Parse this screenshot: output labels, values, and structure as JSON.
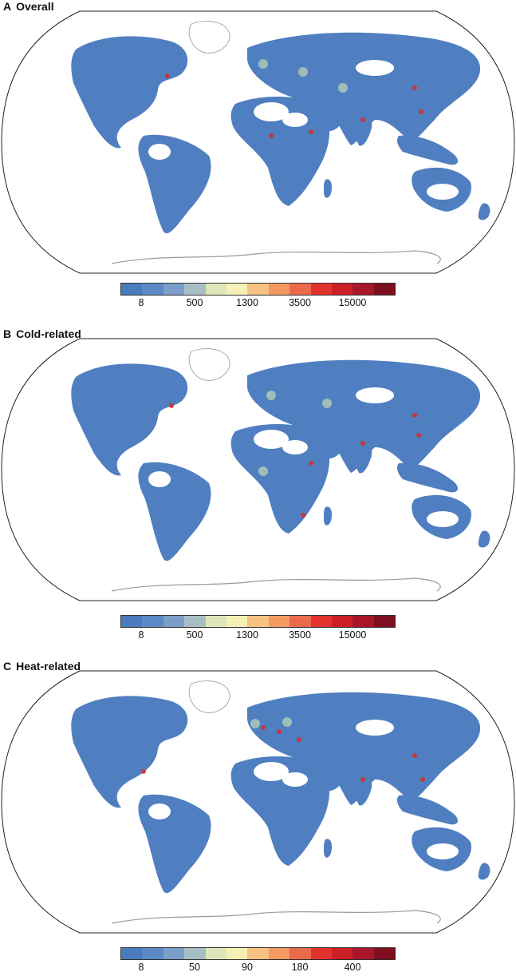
{
  "colorbar_colors": [
    "#4a7bbf",
    "#5b8ac6",
    "#7b9fc8",
    "#a7bec4",
    "#dde6b8",
    "#f6f0b5",
    "#f7c283",
    "#f39a62",
    "#ea6b4c",
    "#e3322e",
    "#cc1f28",
    "#a8162a",
    "#7e0f1f"
  ],
  "land_colors": {
    "base": "#4f7fc0",
    "warm": "#aec9b6",
    "hot": "#d62a2a",
    "outline": "#9a9a9a"
  },
  "panels": [
    {
      "letter": "A",
      "title": "Overall",
      "ticks": [
        "8",
        "500",
        "1300",
        "3500",
        "15000"
      ]
    },
    {
      "letter": "B",
      "title": "Cold-related",
      "ticks": [
        "8",
        "500",
        "1300",
        "3500",
        "15000"
      ]
    },
    {
      "letter": "C",
      "title": "Heat-related",
      "ticks": [
        "8",
        "50",
        "90",
        "180",
        "400"
      ]
    }
  ]
}
